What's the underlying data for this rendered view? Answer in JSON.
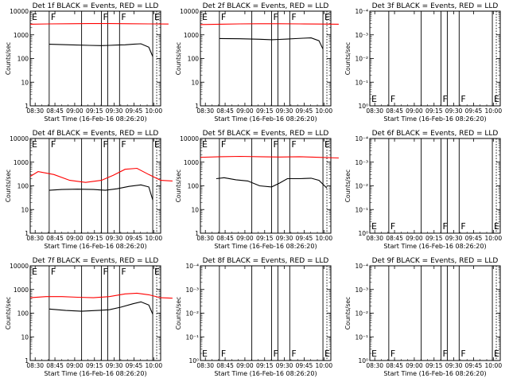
{
  "chart_data": [
    {
      "type": "line",
      "title": "Det 1f BLACK = Events, RED = LLD",
      "ylabel": "Counts/sec",
      "yscale": "log",
      "ylim": [
        1,
        10000
      ],
      "ytick_labels": [
        "1",
        "10",
        "100",
        "1000",
        "10000"
      ],
      "has_data": true,
      "series": [
        {
          "name": "Events",
          "color": "#000000",
          "x": [
            0.24,
            0.5,
            0.75,
            0.9,
            1.0,
            1.1,
            1.2,
            1.3,
            1.4,
            1.5,
            1.55
          ],
          "y": [
            400,
            380,
            360,
            350,
            360,
            370,
            380,
            400,
            420,
            300,
            120
          ]
        },
        {
          "name": "LLD",
          "color": "#ff0000",
          "x": [
            0.0,
            0.25,
            0.5,
            0.75,
            1.0,
            1.25,
            1.5,
            1.75
          ],
          "y": [
            2800,
            2900,
            2950,
            3000,
            3000,
            2950,
            2900,
            2850
          ]
        }
      ]
    },
    {
      "type": "line",
      "title": "Det 2f BLACK = Events, RED = LLD",
      "ylabel": "Counts/sec",
      "yscale": "log",
      "ylim": [
        1,
        10000
      ],
      "ytick_labels": [
        "1",
        "10",
        "100",
        "1000",
        "10000"
      ],
      "has_data": true,
      "series": [
        {
          "name": "Events",
          "color": "#000000",
          "x": [
            0.24,
            0.5,
            0.75,
            0.9,
            1.0,
            1.1,
            1.2,
            1.3,
            1.4,
            1.5,
            1.55
          ],
          "y": [
            700,
            680,
            650,
            620,
            640,
            660,
            690,
            720,
            740,
            560,
            250
          ]
        },
        {
          "name": "LLD",
          "color": "#ff0000",
          "x": [
            0.0,
            0.25,
            0.5,
            0.75,
            1.0,
            1.25,
            1.5,
            1.75
          ],
          "y": [
            2700,
            2800,
            2900,
            2950,
            2950,
            2900,
            2850,
            2800
          ]
        }
      ]
    },
    {
      "type": "line",
      "title": "Det 3f BLACK = Events, RED = LLD",
      "ylabel": "Counts/sec",
      "yscale": "log",
      "ylim": [
        1,
        0.0001
      ],
      "ytick_labels": [
        "10⁰",
        "10⁻¹",
        "10⁻²",
        "10⁻³",
        "10⁻⁴"
      ],
      "has_data": false,
      "series": []
    },
    {
      "type": "line",
      "title": "Det 4f BLACK = Events, RED = LLD",
      "ylabel": "Counts/sec",
      "yscale": "log",
      "ylim": [
        1,
        10000
      ],
      "ytick_labels": [
        "1",
        "10",
        "100",
        "1000",
        "10000"
      ],
      "has_data": true,
      "series": [
        {
          "name": "Events",
          "color": "#000000",
          "x": [
            0.24,
            0.4,
            0.6,
            0.8,
            0.95,
            1.1,
            1.25,
            1.4,
            1.5,
            1.55
          ],
          "y": [
            65,
            70,
            72,
            70,
            65,
            75,
            95,
            110,
            90,
            25
          ]
        },
        {
          "name": "LLD",
          "color": "#ff0000",
          "x": [
            0.0,
            0.1,
            0.3,
            0.5,
            0.7,
            0.9,
            1.05,
            1.2,
            1.35,
            1.5,
            1.65,
            1.8
          ],
          "y": [
            250,
            400,
            300,
            170,
            140,
            170,
            280,
            500,
            550,
            300,
            170,
            160
          ]
        }
      ]
    },
    {
      "type": "line",
      "title": "Det 5f BLACK = Events, RED = LLD",
      "ylabel": "Counts/sec",
      "yscale": "log",
      "ylim": [
        1,
        10000
      ],
      "ytick_labels": [
        "1",
        "10",
        "100",
        "1000",
        "10000"
      ],
      "has_data": true,
      "series": [
        {
          "name": "Events",
          "color": "#000000",
          "x": [
            0.2,
            0.3,
            0.45,
            0.6,
            0.75,
            0.9,
            1.0,
            1.1,
            1.25,
            1.4,
            1.5,
            1.6
          ],
          "y": [
            200,
            220,
            180,
            160,
            100,
            90,
            130,
            200,
            200,
            210,
            170,
            80
          ]
        },
        {
          "name": "LLD",
          "color": "#ff0000",
          "x": [
            0.0,
            0.25,
            0.5,
            0.75,
            1.0,
            1.25,
            1.5,
            1.75
          ],
          "y": [
            1600,
            1700,
            1750,
            1700,
            1650,
            1700,
            1600,
            1500
          ]
        }
      ]
    },
    {
      "type": "line",
      "title": "Det 6f BLACK = Events, RED = LLD",
      "ylabel": "Counts/sec",
      "yscale": "log",
      "ylim": [
        1,
        0.0001
      ],
      "ytick_labels": [
        "10⁰",
        "10⁻¹",
        "10⁻²",
        "10⁻³",
        "10⁻⁴"
      ],
      "has_data": false,
      "series": []
    },
    {
      "type": "line",
      "title": "Det 7f BLACK = Events, RED = LLD",
      "ylabel": "Counts/sec",
      "yscale": "log",
      "ylim": [
        1,
        10000
      ],
      "ytick_labels": [
        "1",
        "10",
        "100",
        "1000",
        "10000"
      ],
      "has_data": true,
      "series": [
        {
          "name": "Events",
          "color": "#000000",
          "x": [
            0.24,
            0.45,
            0.65,
            0.85,
            1.0,
            1.15,
            1.3,
            1.4,
            1.5,
            1.55
          ],
          "y": [
            150,
            130,
            120,
            130,
            140,
            180,
            250,
            300,
            220,
            90
          ]
        },
        {
          "name": "LLD",
          "color": "#ff0000",
          "x": [
            0.0,
            0.2,
            0.4,
            0.6,
            0.8,
            1.0,
            1.2,
            1.35,
            1.5,
            1.65,
            1.8
          ],
          "y": [
            450,
            500,
            500,
            470,
            450,
            500,
            650,
            700,
            600,
            450,
            430
          ]
        }
      ]
    },
    {
      "type": "line",
      "title": "Det 8f BLACK = Events, RED = LLD",
      "ylabel": "Counts/sec",
      "yscale": "log",
      "ylim": [
        1,
        0.0001
      ],
      "ytick_labels": [
        "10⁰",
        "10⁻¹",
        "10⁻²",
        "10⁻³",
        "10⁻⁴"
      ],
      "has_data": false,
      "series": []
    },
    {
      "type": "line",
      "title": "Det 9f BLACK = Events, RED = LLD",
      "ylabel": "Counts/sec",
      "yscale": "log",
      "ylim": [
        1,
        0.0001
      ],
      "ytick_labels": [
        "10⁰",
        "10⁻¹",
        "10⁻²",
        "10⁻³",
        "10⁻⁴"
      ],
      "has_data": false,
      "series": []
    }
  ],
  "shared_axes": {
    "xlabel": "Start Time (16-Feb-16 08:26:20)",
    "x_tick_labels": [
      "08:30",
      "08:45",
      "09:00",
      "09:15",
      "09:30",
      "09:45",
      "10:00"
    ],
    "x_tick_hours": [
      0.0625,
      0.3125,
      0.5625,
      0.8125,
      1.0625,
      1.3125,
      1.5625
    ],
    "xlim_hours": [
      0,
      1.65
    ]
  },
  "markers": {
    "solid_lines_hours": [
      0.24,
      0.65,
      0.9,
      0.98,
      1.13,
      1.55
    ],
    "dotted_lines_hours": [
      1.6
    ],
    "flags": [
      {
        "label": "E",
        "x_hours": 0.0
      },
      {
        "label": "F",
        "x_hours": 0.24
      },
      {
        "label": "F",
        "x_hours": 0.9
      },
      {
        "label": "F",
        "x_hours": 1.13
      },
      {
        "label": "E",
        "x_hours": 1.55
      }
    ]
  }
}
